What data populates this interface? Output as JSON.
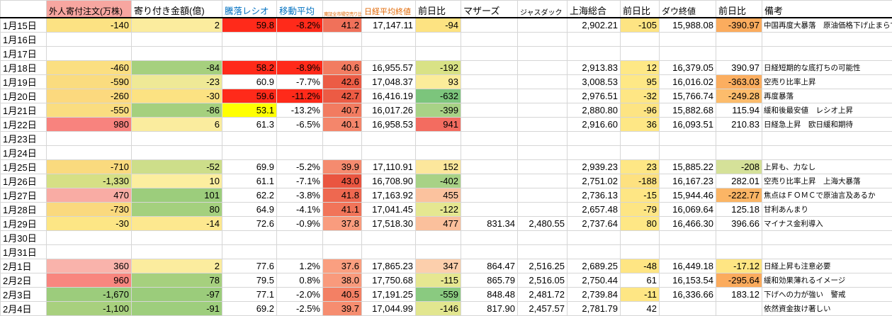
{
  "colors": {
    "foreign_header_bg": "#f7a6a0",
    "blue_header_text": "#0070c0",
    "orange_header_text": "#e26b0a",
    "gridline": "#d6d6d6",
    "alert_red": "#ff2a1a",
    "alert_yellow": "#ffff00"
  },
  "sheet": {
    "headers": {
      "date": "",
      "foreign_orders": "外人寄付注文(万株)",
      "opening_amount": "寄り付き金額(億)",
      "updown_ratio": "騰落レシオ",
      "moving_average": "移動平均",
      "short_ratio": "東証全市場空売り比率",
      "nikkei_close": "日経平均終値",
      "nikkei_change": "前日比",
      "mothers": "マザーズ",
      "jasdaq": "ジャスダック",
      "shanghai": "上海総合",
      "shanghai_change": "前日比",
      "dow_close": "ダウ終値",
      "dow_change": "前日比",
      "remarks": "備考"
    },
    "col_keys": [
      "foreign-orders",
      "opening-amount",
      "updown-ratio",
      "moving-average",
      "short-ratio",
      "nikkei-close",
      "nikkei-change",
      "mothers",
      "jasdaq",
      "shanghai",
      "shanghai-change",
      "dow-close",
      "dow-change",
      "remarks"
    ],
    "rows": [
      {
        "date": "1月15日",
        "cells": [
          {
            "t": "-140",
            "bg": "#FCE283"
          },
          {
            "t": "2",
            "bg": "#FBEC9E"
          },
          {
            "t": "59.8",
            "bg": "#FF2A1A"
          },
          {
            "t": "-8.2%",
            "bg": "#FF2A1A"
          },
          {
            "t": "41.2",
            "bg": "#F0715A"
          },
          {
            "t": "17,147.11"
          },
          {
            "t": "-94",
            "bg": "#FDE382"
          },
          {
            "t": ""
          },
          {
            "t": ""
          },
          {
            "t": "2,902.21"
          },
          {
            "t": "-105",
            "bg": "#FDE483"
          },
          {
            "t": "15,988.08"
          },
          {
            "t": "-390.97",
            "bg": "#FBAC5E"
          },
          {
            "t": "中国再度大暴落　原油価格下げ止まらず"
          }
        ]
      },
      {
        "date": "1月16日",
        "cells": []
      },
      {
        "date": "1月17日",
        "cells": []
      },
      {
        "date": "1月18日",
        "cells": [
          {
            "t": "-460",
            "bg": "#FBDF81"
          },
          {
            "t": "-84",
            "bg": "#A6D07E"
          },
          {
            "t": "58.2",
            "bg": "#FF2A1A"
          },
          {
            "t": "-8.9%",
            "bg": "#FF2A1A"
          },
          {
            "t": "40.6",
            "bg": "#F27C61"
          },
          {
            "t": "16,955.57"
          },
          {
            "t": "-192",
            "bg": "#D9E286"
          },
          {
            "t": ""
          },
          {
            "t": ""
          },
          {
            "t": "2,913.83"
          },
          {
            "t": "12",
            "bg": "#FEE886"
          },
          {
            "t": "16,379.05"
          },
          {
            "t": "390.97"
          },
          {
            "t": "日経短期的な底打ちの可能性"
          }
        ]
      },
      {
        "date": "1月19日",
        "cells": [
          {
            "t": "-590",
            "bg": "#FADC7F"
          },
          {
            "t": "-23",
            "bg": "#EFE996"
          },
          {
            "t": "60.9"
          },
          {
            "t": "-7.7%"
          },
          {
            "t": "42.6",
            "bg": "#EC5C45"
          },
          {
            "t": "17,048.37"
          },
          {
            "t": "93",
            "bg": "#FBEC9A"
          },
          {
            "t": ""
          },
          {
            "t": ""
          },
          {
            "t": "3,008.53"
          },
          {
            "t": "95",
            "bg": "#FEE886"
          },
          {
            "t": "16,016.02"
          },
          {
            "t": "-363.03",
            "bg": "#FBAE60"
          },
          {
            "t": "空売り比率上昇"
          }
        ]
      },
      {
        "date": "1月20日",
        "cells": [
          {
            "t": "-260",
            "bg": "#FCD97E"
          },
          {
            "t": "-30",
            "bg": "#FCE282"
          },
          {
            "t": "59.6",
            "bg": "#FF2A1A"
          },
          {
            "t": "-11.2%",
            "bg": "#FF2A1A"
          },
          {
            "t": "42.7",
            "bg": "#EC5B44"
          },
          {
            "t": "16,416.19"
          },
          {
            "t": "-632",
            "bg": "#7CC57C"
          },
          {
            "t": ""
          },
          {
            "t": ""
          },
          {
            "t": "2,976.51"
          },
          {
            "t": "-32",
            "bg": "#FEE684"
          },
          {
            "t": "15,766.74"
          },
          {
            "t": "-249.28",
            "bg": "#FCBC6C"
          },
          {
            "t": "再度暴落"
          }
        ]
      },
      {
        "date": "1月21日",
        "cells": [
          {
            "t": "-550",
            "bg": "#FADD80"
          },
          {
            "t": "-86",
            "bg": "#A5D07E"
          },
          {
            "t": "53.1",
            "bg": "#FFFF00"
          },
          {
            "t": "-13.2%"
          },
          {
            "t": "40.7",
            "bg": "#F27B60"
          },
          {
            "t": "16,017.26"
          },
          {
            "t": "-399",
            "bg": "#A8D286"
          },
          {
            "t": ""
          },
          {
            "t": ""
          },
          {
            "t": "2,880.80"
          },
          {
            "t": "-96",
            "bg": "#FDE483"
          },
          {
            "t": "15,882.68"
          },
          {
            "t": "115.94"
          },
          {
            "t": "緩和後最安値　レシオ上昇"
          }
        ]
      },
      {
        "date": "1月22日",
        "cells": [
          {
            "t": "980",
            "bg": "#F8837E"
          },
          {
            "t": "6",
            "bg": "#FAEC9E"
          },
          {
            "t": "61.3"
          },
          {
            "t": "-6.5%"
          },
          {
            "t": "40.1",
            "bg": "#F4866B"
          },
          {
            "t": "16,958.53"
          },
          {
            "t": "941",
            "bg": "#F36C60"
          },
          {
            "t": ""
          },
          {
            "t": ""
          },
          {
            "t": "2,916.60"
          },
          {
            "t": "36",
            "bg": "#FEE785"
          },
          {
            "t": "16,093.51"
          },
          {
            "t": "210.83"
          },
          {
            "t": "日経急上昇　欧日緩和期待"
          }
        ]
      },
      {
        "date": "1月23日",
        "cells": []
      },
      {
        "date": "1月24日",
        "cells": []
      },
      {
        "date": "1月25日",
        "cells": [
          {
            "t": "-710",
            "bg": "#FADA7E"
          },
          {
            "t": "-52",
            "bg": "#CDDE8A"
          },
          {
            "t": "69.9"
          },
          {
            "t": "-5.2%"
          },
          {
            "t": "39.9",
            "bg": "#F58B6F"
          },
          {
            "t": "17,110.91"
          },
          {
            "t": "152",
            "bg": "#FCE79C"
          },
          {
            "t": ""
          },
          {
            "t": ""
          },
          {
            "t": "2,939.23"
          },
          {
            "t": "23",
            "bg": "#FEE785"
          },
          {
            "t": "15,885.22"
          },
          {
            "t": "-208",
            "bg": "#D5E199"
          },
          {
            "t": "上昇も、力なし"
          }
        ]
      },
      {
        "date": "1月26日",
        "cells": [
          {
            "t": "-1,330",
            "bg": "#D6E085"
          },
          {
            "t": "10",
            "bg": "#FCEE9F"
          },
          {
            "t": "61.1"
          },
          {
            "t": "-7.1%"
          },
          {
            "t": "43.0",
            "bg": "#EA5540"
          },
          {
            "t": "16,708.90"
          },
          {
            "t": "-402",
            "bg": "#A8D286"
          },
          {
            "t": ""
          },
          {
            "t": ""
          },
          {
            "t": "2,751.02"
          },
          {
            "t": "-188",
            "bg": "#FDE180"
          },
          {
            "t": "16,167.23"
          },
          {
            "t": "282.01"
          },
          {
            "t": "空売り比率上昇　上海大暴落"
          }
        ]
      },
      {
        "date": "1月27日",
        "cells": [
          {
            "t": "470",
            "bg": "#F9ACA4"
          },
          {
            "t": "101",
            "bg": "#9CCD7C"
          },
          {
            "t": "62.2"
          },
          {
            "t": "-3.8%"
          },
          {
            "t": "41.8",
            "bg": "#EE6850"
          },
          {
            "t": "17,163.92"
          },
          {
            "t": "455",
            "bg": "#FBC29E"
          },
          {
            "t": ""
          },
          {
            "t": ""
          },
          {
            "t": "2,736.13"
          },
          {
            "t": "-15",
            "bg": "#FEE684"
          },
          {
            "t": "15,944.46"
          },
          {
            "t": "-222.77",
            "bg": "#FBB565"
          },
          {
            "t": "焦点はＦＯＭＣで原油言及あるか"
          }
        ]
      },
      {
        "date": "1月28日",
        "cells": [
          {
            "t": "-730",
            "bg": "#FAD97E"
          },
          {
            "t": "80",
            "bg": "#A4D07E"
          },
          {
            "t": "64.9"
          },
          {
            "t": "-4.1%"
          },
          {
            "t": "41.1",
            "bg": "#F17459"
          },
          {
            "t": "17,041.45"
          },
          {
            "t": "-122",
            "bg": "#E5E791"
          },
          {
            "t": ""
          },
          {
            "t": ""
          },
          {
            "t": "2,657.48"
          },
          {
            "t": "-79",
            "bg": "#FDE584"
          },
          {
            "t": "16,069.64"
          },
          {
            "t": "125.18"
          },
          {
            "t": "甘利あんまり"
          }
        ]
      },
      {
        "date": "1月29日",
        "cells": [
          {
            "t": "-30",
            "bg": "#FDE685"
          },
          {
            "t": "-14",
            "bg": "#FDE88F"
          },
          {
            "t": "72.6"
          },
          {
            "t": "-0.9%"
          },
          {
            "t": "37.8",
            "bg": "#F99C7E"
          },
          {
            "t": "17,518.30"
          },
          {
            "t": "477",
            "bg": "#FBC09C"
          },
          {
            "t": "831.34"
          },
          {
            "t": "2,480.55"
          },
          {
            "t": "2,737.64"
          },
          {
            "t": "80",
            "bg": "#FEE785"
          },
          {
            "t": "16,466.30"
          },
          {
            "t": "396.66"
          },
          {
            "t": "マイナス金利導入"
          }
        ]
      },
      {
        "date": "1月30日",
        "cells": []
      },
      {
        "date": "1月31日",
        "cells": []
      },
      {
        "date": "2月1日",
        "cells": [
          {
            "t": "360",
            "bg": "#F9B3AB"
          },
          {
            "t": "2",
            "bg": "#FBEC9E"
          },
          {
            "t": "77.6"
          },
          {
            "t": "1.2%"
          },
          {
            "t": "37.6",
            "bg": "#FA9F80"
          },
          {
            "t": "17,865.23"
          },
          {
            "t": "347",
            "bg": "#FCCFAC"
          },
          {
            "t": "864.47"
          },
          {
            "t": "2,516.25"
          },
          {
            "t": "2,689.25"
          },
          {
            "t": "-48",
            "bg": "#FEE583"
          },
          {
            "t": "16,449.18"
          },
          {
            "t": "-17.12",
            "bg": "#FEE583"
          },
          {
            "t": "日経上昇も注意必要"
          }
        ]
      },
      {
        "date": "2月2日",
        "cells": [
          {
            "t": "960",
            "bg": "#F8867F"
          },
          {
            "t": "78",
            "bg": "#A6D07E"
          },
          {
            "t": "79.5"
          },
          {
            "t": "0.8%"
          },
          {
            "t": "38.0",
            "bg": "#F99A7C"
          },
          {
            "t": "17,750.68"
          },
          {
            "t": "-115",
            "bg": "#E6E791"
          },
          {
            "t": "865.79"
          },
          {
            "t": "2,516.05"
          },
          {
            "t": "2,750.44"
          },
          {
            "t": "61"
          },
          {
            "t": "16,153.54"
          },
          {
            "t": "-295.64",
            "bg": "#FBAB5D"
          },
          {
            "t": "緩和効果薄れるイメージ"
          }
        ]
      },
      {
        "date": "2月3日",
        "cells": [
          {
            "t": "-1,670",
            "bg": "#9CCC7C"
          },
          {
            "t": "-97",
            "bg": "#9BCC7B"
          },
          {
            "t": "77.1"
          },
          {
            "t": "-2.0%"
          },
          {
            "t": "40.5",
            "bg": "#F38064"
          },
          {
            "t": "17,191.25"
          },
          {
            "t": "-559",
            "bg": "#8ACA80"
          },
          {
            "t": "848.48"
          },
          {
            "t": "2,481.72"
          },
          {
            "t": "2,739.84"
          },
          {
            "t": "-11",
            "bg": "#FEE684"
          },
          {
            "t": "16,336.66"
          },
          {
            "t": "183.12"
          },
          {
            "t": "下げへの力が強い　警戒"
          }
        ]
      },
      {
        "date": "2月4日",
        "cells": [
          {
            "t": "-1,100",
            "bg": "#A8D07E"
          },
          {
            "t": "-91",
            "bg": "#9ECE7D"
          },
          {
            "t": "69.2"
          },
          {
            "t": "-2.5%"
          },
          {
            "t": "39.7",
            "bg": "#F68D70"
          },
          {
            "t": "17,044.99"
          },
          {
            "t": "-146",
            "bg": "#E2E68F"
          },
          {
            "t": "817.90"
          },
          {
            "t": "2,457.57"
          },
          {
            "t": "2,781.79"
          },
          {
            "t": "42"
          },
          {
            "t": ""
          },
          {
            "t": ""
          },
          {
            "t": "依然資金抜け著しい"
          }
        ]
      }
    ]
  }
}
